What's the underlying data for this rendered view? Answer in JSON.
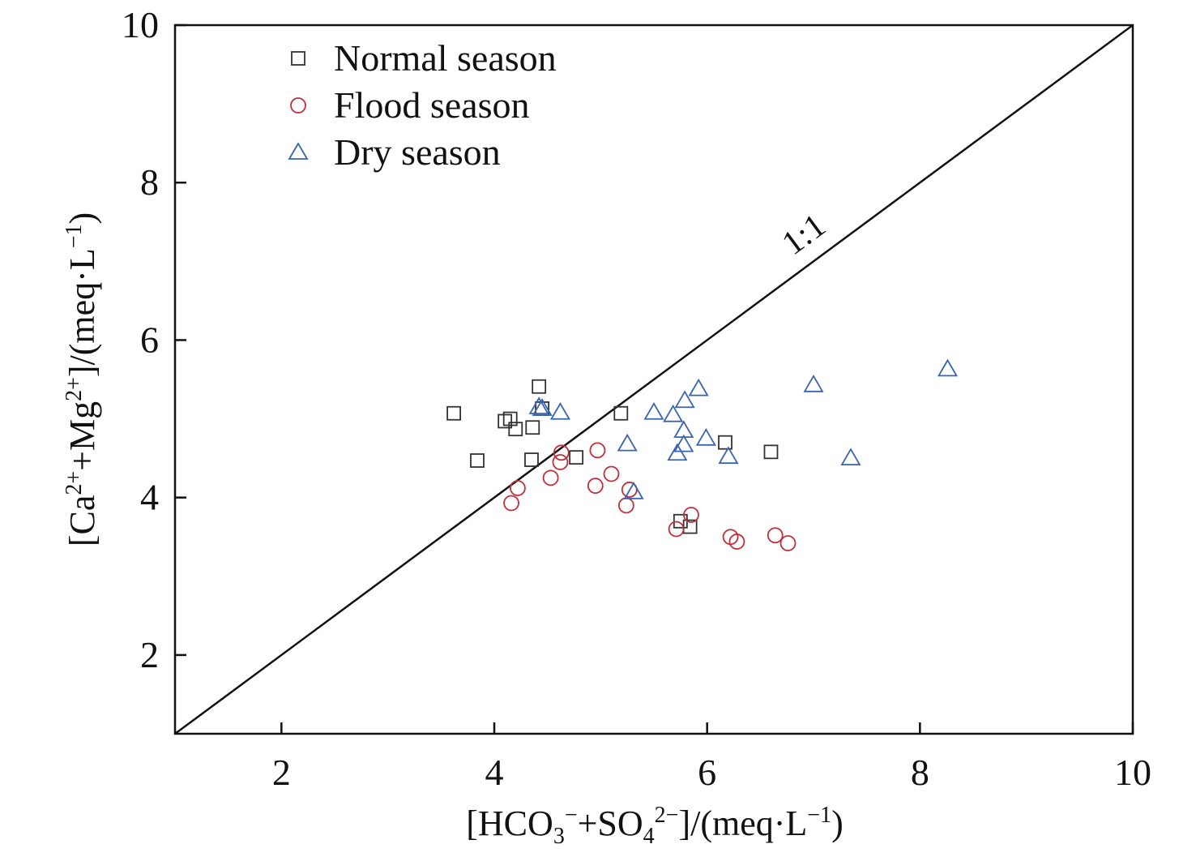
{
  "chart_data": {
    "type": "scatter",
    "xlabel": {
      "open": "[HCO",
      "sub1": "3",
      "sup1": "−",
      "mid": "+SO",
      "sub2": "4",
      "sup2": "2−",
      "close": "]/(meq·L",
      "sup3": "−1",
      "end": ")"
    },
    "ylabel": {
      "open": "[Ca",
      "sup1": "2+",
      "mid": "+Mg",
      "sup2": "2+",
      "close": "]/(meq·L",
      "sup3": "−1",
      "end": ")"
    },
    "xlim": [
      1,
      10
    ],
    "ylim": [
      1,
      10
    ],
    "xticks": [
      2,
      4,
      6,
      8,
      10
    ],
    "yticks": [
      2,
      4,
      6,
      8,
      10
    ],
    "xtick_labels": [
      "2",
      "4",
      "6",
      "8",
      "10"
    ],
    "ytick_labels": [
      "2",
      "4",
      "6",
      "8",
      "10"
    ],
    "grid": false,
    "legend_position": "top-left",
    "reference_line": {
      "label": "1:1",
      "from": [
        1,
        1
      ],
      "to": [
        10,
        10
      ]
    },
    "series": [
      {
        "name": "Normal season",
        "marker": "square",
        "color": "#333333",
        "points": [
          [
            3.62,
            5.07
          ],
          [
            4.1,
            4.97
          ],
          [
            4.15,
            5.0
          ],
          [
            4.2,
            4.87
          ],
          [
            4.36,
            4.89
          ],
          [
            4.42,
            5.41
          ],
          [
            4.45,
            5.13
          ],
          [
            3.84,
            4.47
          ],
          [
            4.35,
            4.48
          ],
          [
            4.77,
            4.51
          ],
          [
            5.19,
            5.07
          ],
          [
            6.17,
            4.7
          ],
          [
            6.6,
            4.58
          ],
          [
            5.75,
            3.7
          ],
          [
            5.84,
            3.63
          ]
        ]
      },
      {
        "name": "Flood season",
        "marker": "circle",
        "color": "#c0303a",
        "points": [
          [
            4.16,
            3.93
          ],
          [
            4.22,
            4.12
          ],
          [
            4.53,
            4.25
          ],
          [
            4.62,
            4.45
          ],
          [
            4.63,
            4.57
          ],
          [
            4.95,
            4.15
          ],
          [
            4.97,
            4.6
          ],
          [
            5.1,
            4.3
          ],
          [
            5.24,
            3.9
          ],
          [
            5.27,
            4.1
          ],
          [
            5.71,
            3.6
          ],
          [
            5.85,
            3.78
          ],
          [
            6.22,
            3.5
          ],
          [
            6.28,
            3.44
          ],
          [
            6.64,
            3.52
          ],
          [
            6.76,
            3.42
          ]
        ]
      },
      {
        "name": "Dry season",
        "marker": "triangle",
        "color": "#3a64b0",
        "points": [
          [
            4.42,
            5.15
          ],
          [
            4.45,
            5.13
          ],
          [
            4.62,
            5.08
          ],
          [
            5.25,
            4.68
          ],
          [
            5.31,
            4.07
          ],
          [
            5.5,
            5.08
          ],
          [
            5.68,
            5.05
          ],
          [
            5.72,
            4.56
          ],
          [
            5.78,
            4.67
          ],
          [
            5.78,
            4.85
          ],
          [
            5.79,
            5.23
          ],
          [
            5.92,
            5.38
          ],
          [
            5.99,
            4.75
          ],
          [
            6.2,
            4.52
          ],
          [
            7.0,
            5.43
          ],
          [
            7.35,
            4.5
          ],
          [
            8.26,
            5.63
          ]
        ]
      }
    ]
  }
}
